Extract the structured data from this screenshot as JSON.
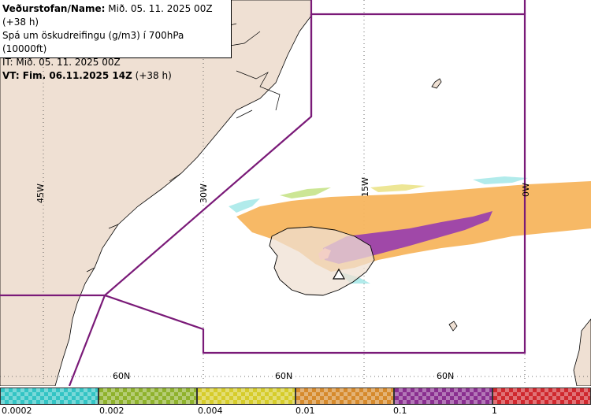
{
  "info": {
    "line1_label": "Veðurstofan/Name:",
    "line1_value": " Mið. 05. 11. 2025 00Z (+38 h)",
    "line2": "Spá um öskudreifingu (g/m3) í 700hPa (10000ft)",
    "line3": "IT: Mið. 05. 11. 2025 00Z",
    "line4_label": "VT: Fim. 06.11.2025 14Z",
    "line4_value": " (+38 h)"
  },
  "map_labels": {
    "lon_45w": "45W",
    "lon_30w": "30W",
    "lon_15w": "15W",
    "lon_0w": "0W",
    "lat_a": "60N",
    "lat_b": "60N",
    "lat_c": "60N"
  },
  "legend": {
    "ticks": [
      "0.0002",
      "0.002",
      "0.004",
      "0.01",
      "0.1",
      "1"
    ],
    "colors": [
      "#33c4c4",
      "#8fb22c",
      "#d6cc2a",
      "#d68a2c",
      "#8a2f90",
      "#d0282e"
    ]
  },
  "colors": {
    "land": "#efe0d3",
    "fir_boundary": "#7a1a78",
    "ash_low": "#f7b55e",
    "ash_mid": "#a048a8",
    "ash_high": "#ff8a8a"
  }
}
